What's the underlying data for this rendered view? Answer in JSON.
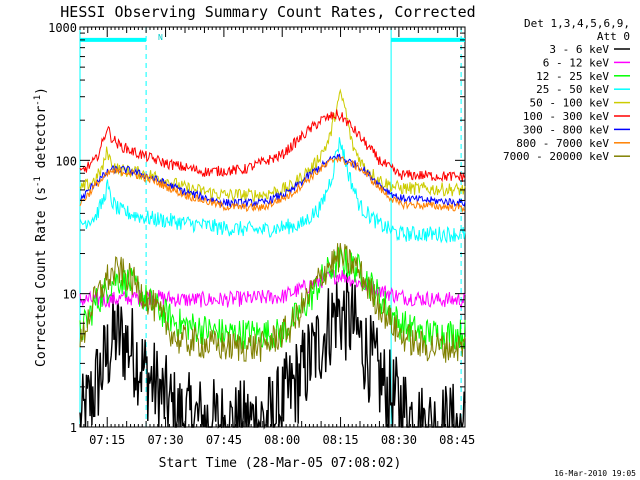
{
  "title": "HESSI Observing Summary Count Rates, Corrected",
  "legend_header": [
    "Det 1,3,4,5,6,9,",
    "Att 0"
  ],
  "footer_timestamp": "16-Mar-2010 19:05",
  "flag_label": "N",
  "chart_data": {
    "type": "line",
    "title": "HESSI Observing Summary Count Rates, Corrected",
    "xlabel": "Start Time (28-Mar-05 07:08:02)",
    "ylabel": "Corrected Count Rate (s⁻¹ detector⁻¹)",
    "ylabel_main": "Corrected Count Rate (s",
    "ylabel_sup1": "-1",
    "ylabel_mid": " detector",
    "ylabel_sup2": "-1",
    "ylabel_end": ")",
    "yscale": "log",
    "ylim": [
      1,
      1000
    ],
    "xlim": [
      "07:08",
      "08:47"
    ],
    "x_tick_labels": [
      "07:15",
      "07:30",
      "07:45",
      "08:00",
      "08:15",
      "08:30",
      "08:45"
    ],
    "y_tick_labels": [
      "1",
      "10",
      "100",
      "1000"
    ],
    "legend_position": "right",
    "series": [
      {
        "name": "3 - 6 keV",
        "color": "#000000",
        "x": [
          "07:08",
          "07:12",
          "07:17",
          "07:21",
          "07:25",
          "07:33",
          "07:48",
          "07:58",
          "08:05",
          "08:10",
          "08:14",
          "08:18",
          "08:22",
          "08:27",
          "08:36",
          "08:47"
        ],
        "y": [
          1.0,
          2.0,
          5.0,
          4.0,
          2.5,
          1.2,
          1.0,
          1.2,
          2.5,
          4.5,
          7.5,
          6.0,
          3.5,
          1.8,
          1.0,
          1.0
        ]
      },
      {
        "name": "6 - 12 keV",
        "color": "#ff00ff",
        "x": [
          "07:08",
          "07:15",
          "07:25",
          "07:35",
          "07:45",
          "08:00",
          "08:10",
          "08:15",
          "08:20",
          "08:30",
          "08:40",
          "08:47"
        ],
        "y": [
          9.0,
          9.0,
          9.5,
          9.0,
          9.0,
          9.5,
          12.5,
          14.0,
          12.0,
          9.5,
          9.0,
          9.0
        ]
      },
      {
        "name": "12 - 25 keV",
        "color": "#00ff00",
        "x": [
          "07:08",
          "07:12",
          "07:17",
          "07:21",
          "07:26",
          "07:33",
          "07:45",
          "08:00",
          "08:07",
          "08:11",
          "08:15",
          "08:20",
          "08:25",
          "08:30",
          "08:36",
          "08:47"
        ],
        "y": [
          5.0,
          8.5,
          13.0,
          12.0,
          8.5,
          6.0,
          5.0,
          5.0,
          9.0,
          14.0,
          18.0,
          15.0,
          9.5,
          6.0,
          5.0,
          5.0
        ]
      },
      {
        "name": "25 - 50 keV",
        "color": "#00ffff",
        "x": [
          "07:08",
          "07:12",
          "07:14",
          "07:15",
          "07:16",
          "07:18",
          "07:25",
          "07:35",
          "07:45",
          "07:55",
          "08:05",
          "08:10",
          "08:13",
          "08:14",
          "08:15",
          "08:17",
          "08:20",
          "08:25",
          "08:30",
          "08:47"
        ],
        "y": [
          33,
          38,
          50,
          65,
          50,
          42,
          37,
          34,
          31,
          30,
          33,
          45,
          80,
          120,
          140,
          80,
          45,
          33,
          28,
          28
        ]
      },
      {
        "name": "50 - 100 keV",
        "color": "#cccc00",
        "x": [
          "07:08",
          "07:12",
          "07:14",
          "07:15",
          "07:16",
          "07:18",
          "07:22",
          "07:28",
          "07:35",
          "07:45",
          "07:55",
          "08:02",
          "08:08",
          "08:12",
          "08:14",
          "08:15",
          "08:16",
          "08:18",
          "08:21",
          "08:26",
          "08:30",
          "08:47"
        ],
        "y": [
          60,
          72,
          90,
          120,
          95,
          85,
          82,
          75,
          62,
          55,
          55,
          63,
          90,
          140,
          250,
          310,
          260,
          130,
          90,
          68,
          62,
          60
        ]
      },
      {
        "name": "100 - 300 keV",
        "color": "#ff0000",
        "x": [
          "07:08",
          "07:12",
          "07:14",
          "07:15",
          "07:16",
          "07:18",
          "07:22",
          "07:30",
          "07:40",
          "07:50",
          "08:00",
          "08:06",
          "08:10",
          "08:14",
          "08:16",
          "08:20",
          "08:25",
          "08:30",
          "08:47"
        ],
        "y": [
          80,
          100,
          140,
          180,
          150,
          130,
          115,
          95,
          82,
          85,
          110,
          160,
          200,
          220,
          205,
          150,
          100,
          78,
          75
        ]
      },
      {
        "name": "300 - 800 keV",
        "color": "#0000ff",
        "x": [
          "07:08",
          "07:12",
          "07:16",
          "07:20",
          "07:26",
          "07:35",
          "07:45",
          "07:55",
          "08:02",
          "08:08",
          "08:14",
          "08:20",
          "08:26",
          "08:30",
          "08:47"
        ],
        "y": [
          50,
          68,
          85,
          85,
          75,
          58,
          48,
          48,
          58,
          82,
          108,
          90,
          62,
          52,
          48
        ]
      },
      {
        "name": "800 - 7000 keV",
        "color": "#ff8000",
        "x": [
          "07:08",
          "07:12",
          "07:16",
          "07:20",
          "07:26",
          "07:35",
          "07:45",
          "07:55",
          "08:02",
          "08:08",
          "08:14",
          "08:20",
          "08:26",
          "08:30",
          "08:47"
        ],
        "y": [
          47,
          65,
          82,
          82,
          72,
          55,
          45,
          44,
          55,
          78,
          105,
          88,
          58,
          47,
          44
        ]
      },
      {
        "name": "7000 - 20000 keV",
        "color": "#808000",
        "x": [
          "07:08",
          "07:11",
          "07:15",
          "07:18",
          "07:22",
          "07:27",
          "07:33",
          "07:45",
          "07:55",
          "08:02",
          "08:08",
          "08:12",
          "08:15",
          "08:19",
          "08:24",
          "08:30",
          "08:36",
          "08:47"
        ],
        "y": [
          4.0,
          8.0,
          13.0,
          15.0,
          12.0,
          8.0,
          4.5,
          4.0,
          4.0,
          5.5,
          11.0,
          16.5,
          19.0,
          16.0,
          9.0,
          5.0,
          4.0,
          4.0
        ]
      }
    ],
    "vertical_lines": [
      {
        "time": "07:08",
        "style": "solid",
        "color": "#00ffff"
      },
      {
        "time": "07:25",
        "style": "dashed",
        "color": "#00ffff"
      },
      {
        "time": "08:28",
        "style": "solid",
        "color": "#00ffff"
      },
      {
        "time": "08:46",
        "style": "dashed",
        "color": "#00ffff"
      }
    ],
    "flag_bars": [
      {
        "start": "07:08",
        "end": "07:25",
        "value": 800,
        "color": "#00ffff"
      },
      {
        "start": "08:28",
        "end": "08:47",
        "value": 800,
        "color": "#00ffff"
      }
    ]
  }
}
